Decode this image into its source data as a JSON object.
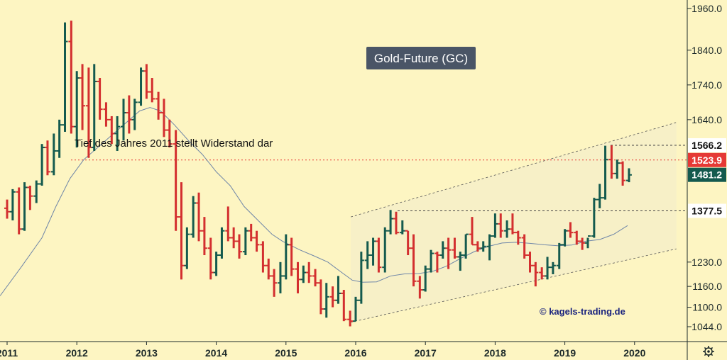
{
  "chart_data": {
    "type": "ohlc-bar",
    "title": "Gold-Future (GC)",
    "annotation": "Tief des Jahres 2011 stellt Widerstand dar",
    "credit": "© kagels-trading.de",
    "y_ticks": [
      "1960.0",
      "1840.0",
      "1740.0",
      "1640.0",
      "1230.0",
      "1160.0",
      "1100.0",
      "1044.0"
    ],
    "x_ticks": [
      "2011",
      "2012",
      "2013",
      "2014",
      "2015",
      "2016",
      "2017",
      "2018",
      "2019",
      "2020"
    ],
    "price_labels": [
      {
        "value": 1566.2,
        "text": "1566.2",
        "bg": "#ffffff",
        "fg": "#111111",
        "line": "#444444",
        "dash": "3,3"
      },
      {
        "value": 1523.9,
        "text": "1523.9",
        "bg": "#e53935",
        "fg": "#ffffff",
        "line": "#e53935",
        "dash": "2,3"
      },
      {
        "value": 1481.2,
        "text": "1481.2",
        "bg": "#145a4e",
        "fg": "#ffffff",
        "line": null,
        "dash": null
      },
      {
        "value": 1377.5,
        "text": "1377.5",
        "bg": "#ffffff",
        "fg": "#111111",
        "line": "#444444",
        "dash": "3,3"
      }
    ],
    "colors": {
      "up": "#145a4e",
      "down": "#d32f2f",
      "ma": "#6f86a8",
      "channel": "#555555",
      "background": "#fdf5c2",
      "title_bg": "#4a5566"
    },
    "ma_points": [
      [
        2010.9,
        1133
      ],
      [
        2011.2,
        1215
      ],
      [
        2011.5,
        1300
      ],
      [
        2011.7,
        1390
      ],
      [
        2011.9,
        1470
      ],
      [
        2012.1,
        1525
      ],
      [
        2012.3,
        1560
      ],
      [
        2012.5,
        1595
      ],
      [
        2012.7,
        1630
      ],
      [
        2012.9,
        1665
      ],
      [
        2013.05,
        1675
      ],
      [
        2013.2,
        1665
      ],
      [
        2013.4,
        1625
      ],
      [
        2013.6,
        1580
      ],
      [
        2013.8,
        1540
      ],
      [
        2014.0,
        1490
      ],
      [
        2014.2,
        1450
      ],
      [
        2014.4,
        1390
      ],
      [
        2014.6,
        1350
      ],
      [
        2014.8,
        1310
      ],
      [
        2014.95,
        1290
      ],
      [
        2015.2,
        1265
      ],
      [
        2015.4,
        1248
      ],
      [
        2015.6,
        1230
      ],
      [
        2015.8,
        1200
      ],
      [
        2015.95,
        1178
      ],
      [
        2016.1,
        1172
      ],
      [
        2016.3,
        1173
      ],
      [
        2016.5,
        1190
      ],
      [
        2016.7,
        1196
      ],
      [
        2016.9,
        1197
      ],
      [
        2017.1,
        1203
      ],
      [
        2017.3,
        1218
      ],
      [
        2017.5,
        1240
      ],
      [
        2017.7,
        1260
      ],
      [
        2017.9,
        1275
      ],
      [
        2018.1,
        1285
      ],
      [
        2018.3,
        1287
      ],
      [
        2018.5,
        1284
      ],
      [
        2018.7,
        1280
      ],
      [
        2018.9,
        1277
      ],
      [
        2019.1,
        1279
      ],
      [
        2019.3,
        1290
      ],
      [
        2019.5,
        1295
      ],
      [
        2019.7,
        1310
      ],
      [
        2019.9,
        1335
      ]
    ],
    "channel": {
      "upper": [
        [
          2015.93,
          1360
        ],
        [
          2020.6,
          1632
        ]
      ],
      "lower": [
        [
          2015.93,
          1057
        ],
        [
          2020.6,
          1268
        ]
      ],
      "fill": "#f6efc8"
    },
    "bars": [
      [
        2011.0,
        1385,
        1410,
        1355,
        1375
      ],
      [
        2011.08,
        1375,
        1440,
        1350,
        1432
      ],
      [
        2011.17,
        1432,
        1445,
        1310,
        1325
      ],
      [
        2011.25,
        1325,
        1460,
        1320,
        1445
      ],
      [
        2011.33,
        1445,
        1450,
        1380,
        1420
      ],
      [
        2011.42,
        1420,
        1465,
        1400,
        1455
      ],
      [
        2011.5,
        1455,
        1570,
        1450,
        1560
      ],
      [
        2011.58,
        1560,
        1580,
        1480,
        1490
      ],
      [
        2011.67,
        1490,
        1600,
        1480,
        1550
      ],
      [
        2011.75,
        1550,
        1640,
        1530,
        1625
      ],
      [
        2011.83,
        1625,
        1920,
        1605,
        1865
      ],
      [
        2011.92,
        1865,
        1925,
        1600,
        1620
      ],
      [
        2012.0,
        1620,
        1780,
        1560,
        1760
      ],
      [
        2012.08,
        1760,
        1800,
        1610,
        1680
      ],
      [
        2012.17,
        1680,
        1790,
        1530,
        1560
      ],
      [
        2012.25,
        1560,
        1800,
        1550,
        1750
      ],
      [
        2012.33,
        1750,
        1760,
        1640,
        1670
      ],
      [
        2012.42,
        1670,
        1690,
        1620,
        1640
      ],
      [
        2012.5,
        1640,
        1650,
        1570,
        1600
      ],
      [
        2012.58,
        1600,
        1650,
        1550,
        1620
      ],
      [
        2012.67,
        1620,
        1700,
        1580,
        1660
      ],
      [
        2012.75,
        1660,
        1710,
        1600,
        1640
      ],
      [
        2012.83,
        1640,
        1700,
        1610,
        1690
      ],
      [
        2012.92,
        1690,
        1790,
        1680,
        1780
      ],
      [
        2013.0,
        1780,
        1800,
        1700,
        1720
      ],
      [
        2013.08,
        1720,
        1760,
        1690,
        1700
      ],
      [
        2013.17,
        1700,
        1720,
        1640,
        1660
      ],
      [
        2013.25,
        1660,
        1700,
        1590,
        1610
      ],
      [
        2013.33,
        1610,
        1640,
        1560,
        1570
      ],
      [
        2013.42,
        1570,
        1610,
        1320,
        1360
      ],
      [
        2013.5,
        1360,
        1460,
        1180,
        1220
      ],
      [
        2013.58,
        1220,
        1330,
        1210,
        1310
      ],
      [
        2013.67,
        1310,
        1420,
        1300,
        1400
      ],
      [
        2013.75,
        1400,
        1430,
        1290,
        1320
      ],
      [
        2013.83,
        1320,
        1360,
        1250,
        1270
      ],
      [
        2013.92,
        1270,
        1300,
        1180,
        1200
      ],
      [
        2014.0,
        1200,
        1260,
        1190,
        1250
      ],
      [
        2014.08,
        1250,
        1330,
        1240,
        1320
      ],
      [
        2014.17,
        1320,
        1390,
        1290,
        1300
      ],
      [
        2014.25,
        1300,
        1330,
        1270,
        1290
      ],
      [
        2014.33,
        1290,
        1310,
        1240,
        1260
      ],
      [
        2014.42,
        1260,
        1330,
        1250,
        1320
      ],
      [
        2014.5,
        1320,
        1340,
        1290,
        1300
      ],
      [
        2014.58,
        1300,
        1320,
        1260,
        1280
      ],
      [
        2014.67,
        1280,
        1290,
        1200,
        1220
      ],
      [
        2014.75,
        1220,
        1240,
        1180,
        1190
      ],
      [
        2014.83,
        1190,
        1210,
        1130,
        1170
      ],
      [
        2014.92,
        1170,
        1230,
        1140,
        1190
      ],
      [
        2015.0,
        1190,
        1310,
        1180,
        1280
      ],
      [
        2015.08,
        1280,
        1300,
        1190,
        1210
      ],
      [
        2015.17,
        1210,
        1230,
        1140,
        1180
      ],
      [
        2015.25,
        1180,
        1220,
        1170,
        1200
      ],
      [
        2015.33,
        1200,
        1230,
        1170,
        1190
      ],
      [
        2015.42,
        1190,
        1210,
        1160,
        1170
      ],
      [
        2015.5,
        1170,
        1180,
        1080,
        1095
      ],
      [
        2015.58,
        1095,
        1170,
        1070,
        1130
      ],
      [
        2015.67,
        1130,
        1160,
        1100,
        1120
      ],
      [
        2015.75,
        1120,
        1190,
        1110,
        1140
      ],
      [
        2015.83,
        1140,
        1150,
        1060,
        1065
      ],
      [
        2015.92,
        1065,
        1090,
        1045,
        1060
      ],
      [
        2016.0,
        1060,
        1130,
        1060,
        1120
      ],
      [
        2016.08,
        1120,
        1260,
        1110,
        1235
      ],
      [
        2016.17,
        1235,
        1290,
        1210,
        1250
      ],
      [
        2016.25,
        1250,
        1300,
        1220,
        1290
      ],
      [
        2016.33,
        1290,
        1300,
        1200,
        1215
      ],
      [
        2016.42,
        1215,
        1330,
        1200,
        1320
      ],
      [
        2016.5,
        1320,
        1380,
        1310,
        1355
      ],
      [
        2016.58,
        1355,
        1375,
        1310,
        1315
      ],
      [
        2016.67,
        1315,
        1350,
        1310,
        1320
      ],
      [
        2016.75,
        1320,
        1320,
        1250,
        1270
      ],
      [
        2016.83,
        1270,
        1310,
        1160,
        1175
      ],
      [
        2016.92,
        1175,
        1190,
        1125,
        1150
      ],
      [
        2017.0,
        1150,
        1220,
        1145,
        1210
      ],
      [
        2017.08,
        1210,
        1265,
        1200,
        1255
      ],
      [
        2017.17,
        1255,
        1260,
        1200,
        1250
      ],
      [
        2017.25,
        1250,
        1290,
        1240,
        1270
      ],
      [
        2017.33,
        1270,
        1300,
        1210,
        1265
      ],
      [
        2017.42,
        1265,
        1300,
        1240,
        1245
      ],
      [
        2017.5,
        1245,
        1260,
        1205,
        1250
      ],
      [
        2017.58,
        1250,
        1310,
        1240,
        1310
      ],
      [
        2017.67,
        1310,
        1360,
        1280,
        1280
      ],
      [
        2017.75,
        1280,
        1290,
        1260,
        1270
      ],
      [
        2017.83,
        1270,
        1290,
        1260,
        1275
      ],
      [
        2017.92,
        1275,
        1310,
        1235,
        1305
      ],
      [
        2018.0,
        1305,
        1370,
        1300,
        1340
      ],
      [
        2018.08,
        1340,
        1370,
        1300,
        1320
      ],
      [
        2018.17,
        1320,
        1350,
        1300,
        1325
      ],
      [
        2018.25,
        1325,
        1370,
        1310,
        1315
      ],
      [
        2018.33,
        1315,
        1320,
        1280,
        1300
      ],
      [
        2018.42,
        1300,
        1310,
        1240,
        1250
      ],
      [
        2018.5,
        1250,
        1260,
        1200,
        1220
      ],
      [
        2018.58,
        1220,
        1230,
        1160,
        1200
      ],
      [
        2018.67,
        1200,
        1215,
        1180,
        1190
      ],
      [
        2018.75,
        1190,
        1245,
        1180,
        1215
      ],
      [
        2018.83,
        1215,
        1230,
        1195,
        1220
      ],
      [
        2018.92,
        1220,
        1285,
        1210,
        1280
      ],
      [
        2019.0,
        1280,
        1325,
        1275,
        1320
      ],
      [
        2019.08,
        1320,
        1345,
        1300,
        1315
      ],
      [
        2019.17,
        1315,
        1320,
        1280,
        1290
      ],
      [
        2019.25,
        1290,
        1300,
        1265,
        1285
      ],
      [
        2019.33,
        1285,
        1300,
        1270,
        1305
      ],
      [
        2019.42,
        1305,
        1415,
        1300,
        1410
      ],
      [
        2019.5,
        1410,
        1455,
        1385,
        1415
      ],
      [
        2019.58,
        1415,
        1565,
        1410,
        1525
      ],
      [
        2019.67,
        1525,
        1566,
        1470,
        1485
      ],
      [
        2019.75,
        1485,
        1525,
        1470,
        1515
      ],
      [
        2019.83,
        1515,
        1520,
        1450,
        1465
      ],
      [
        2019.92,
        1465,
        1500,
        1460,
        1481
      ]
    ]
  }
}
